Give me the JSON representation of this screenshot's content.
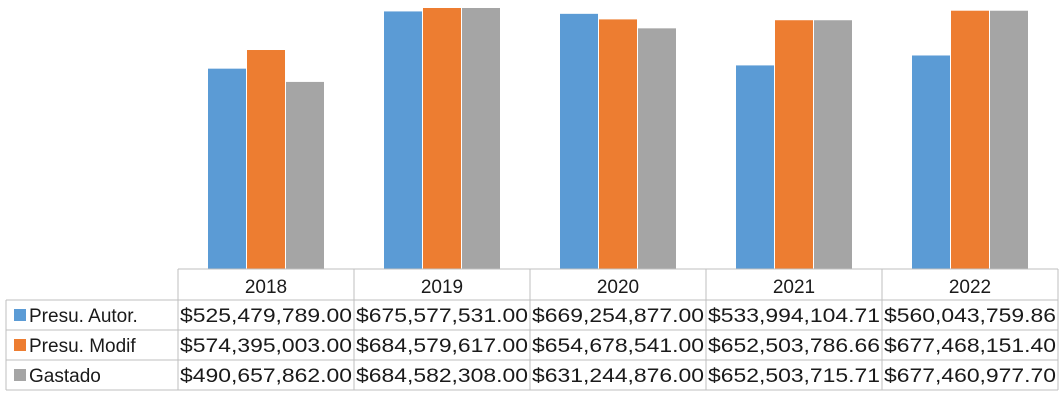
{
  "chart_data": {
    "type": "bar",
    "categories": [
      "2018",
      "2019",
      "2020",
      "2021",
      "2022"
    ],
    "series": [
      {
        "name": "Presu. Autor.",
        "color": "#5B9BD5",
        "values": [
          525479789.0,
          675577531.0,
          669254877.0,
          533994104.71,
          560043759.86
        ],
        "labels": [
          "$525,479,789.00",
          "$675,577,531.00",
          "$669,254,877.00",
          "$533,994,104.71",
          "$560,043,759.86"
        ]
      },
      {
        "name": "Presu. Modif",
        "color": "#ED7D31",
        "values": [
          574395003.0,
          684579617.0,
          654678541.0,
          652503786.66,
          677468151.4
        ],
        "labels": [
          "$574,395,003.00",
          "$684,579,617.00",
          "$654,678,541.00",
          "$652,503,786.66",
          "$677,468,151.40"
        ]
      },
      {
        "name": "Gastado",
        "color": "#A5A5A5",
        "values": [
          490657862.0,
          684582308.0,
          631244876.0,
          652503715.71,
          677460977.7
        ],
        "labels": [
          "$490,657,862.00",
          "$684,582,308.00",
          "$631,244,876.00",
          "$652,503,715.71",
          "$677,460,977.70"
        ]
      }
    ],
    "data_table": true,
    "legend": "data-table",
    "grid": false
  }
}
